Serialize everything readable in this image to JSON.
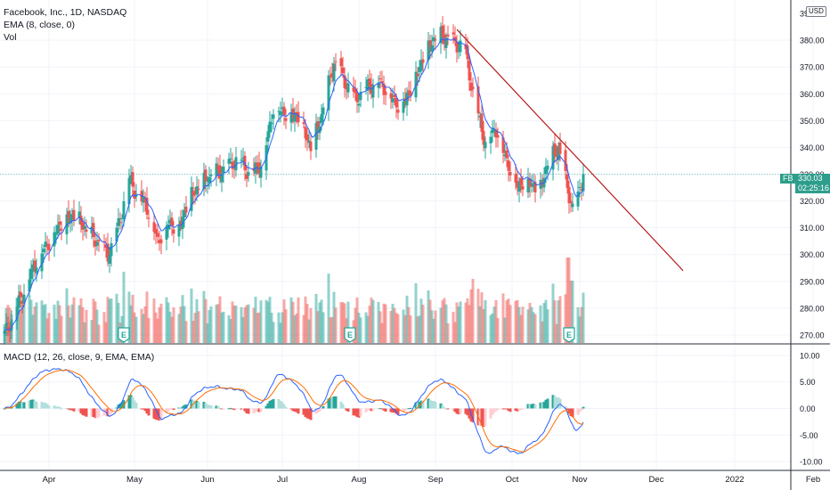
{
  "chart_data": [
    {
      "type": "candlestick",
      "title": "Facebook, Inc., 1D, NASDAQ",
      "indicator": "EMA (8, close, 0)",
      "volume_label": "Vol",
      "currency": "USD",
      "symbol_tag": "FB",
      "last_price": "330.03",
      "countdown": "02:25:16",
      "ylim": [
        267,
        395
      ],
      "y_ticks": [
        "270.00",
        "280.00",
        "290.00",
        "300.00",
        "310.00",
        "320.00",
        "330.00",
        "340.00",
        "350.00",
        "360.00",
        "370.00",
        "380.00"
      ],
      "y_top_partial": "390",
      "x_ticks": [
        {
          "day": 25,
          "label": "Apr"
        },
        {
          "day": 73,
          "label": "May"
        },
        {
          "day": 114,
          "label": "Jun"
        },
        {
          "day": 156,
          "label": "Jul"
        },
        {
          "day": 199,
          "label": "Aug"
        },
        {
          "day": 242,
          "label": "Sep"
        },
        {
          "day": 285,
          "label": "Oct"
        },
        {
          "day": 323,
          "label": "Nov"
        },
        {
          "day": 366,
          "label": "Dec"
        },
        {
          "day": 410,
          "label": "2022"
        },
        {
          "day": 454,
          "label": "Feb"
        }
      ],
      "earnings_markers": [
        {
          "day": 67,
          "label": "E"
        },
        {
          "day": 194,
          "label": "E"
        },
        {
          "day": 317,
          "label": "E"
        }
      ],
      "trendline": {
        "start": {
          "day": 254,
          "price": 384
        },
        "end": {
          "day": 381,
          "price": 294
        }
      },
      "key_closes": [
        {
          "day": 0,
          "close": 270
        },
        {
          "day": 10,
          "close": 285
        },
        {
          "day": 18,
          "close": 298
        },
        {
          "day": 25,
          "close": 305
        },
        {
          "day": 32,
          "close": 312
        },
        {
          "day": 40,
          "close": 315
        },
        {
          "day": 47,
          "close": 308
        },
        {
          "day": 52,
          "close": 305
        },
        {
          "day": 58,
          "close": 300
        },
        {
          "day": 63,
          "close": 308
        },
        {
          "day": 70,
          "close": 328
        },
        {
          "day": 75,
          "close": 322
        },
        {
          "day": 80,
          "close": 318
        },
        {
          "day": 86,
          "close": 305
        },
        {
          "day": 92,
          "close": 312
        },
        {
          "day": 98,
          "close": 310
        },
        {
          "day": 104,
          "close": 322
        },
        {
          "day": 110,
          "close": 326
        },
        {
          "day": 117,
          "close": 330
        },
        {
          "day": 124,
          "close": 332
        },
        {
          "day": 131,
          "close": 336
        },
        {
          "day": 138,
          "close": 330
        },
        {
          "day": 145,
          "close": 335
        },
        {
          "day": 151,
          "close": 355
        },
        {
          "day": 158,
          "close": 353
        },
        {
          "day": 165,
          "close": 352
        },
        {
          "day": 172,
          "close": 340
        },
        {
          "day": 178,
          "close": 352
        },
        {
          "day": 185,
          "close": 372
        },
        {
          "day": 191,
          "close": 365
        },
        {
          "day": 197,
          "close": 358
        },
        {
          "day": 204,
          "close": 363
        },
        {
          "day": 210,
          "close": 365
        },
        {
          "day": 216,
          "close": 360
        },
        {
          "day": 222,
          "close": 355
        },
        {
          "day": 228,
          "close": 362
        },
        {
          "day": 234,
          "close": 372
        },
        {
          "day": 240,
          "close": 380
        },
        {
          "day": 246,
          "close": 382
        },
        {
          "day": 252,
          "close": 379
        },
        {
          "day": 258,
          "close": 378
        },
        {
          "day": 264,
          "close": 357
        },
        {
          "day": 270,
          "close": 342
        },
        {
          "day": 276,
          "close": 347
        },
        {
          "day": 282,
          "close": 335
        },
        {
          "day": 288,
          "close": 326
        },
        {
          "day": 294,
          "close": 328
        },
        {
          "day": 300,
          "close": 324
        },
        {
          "day": 306,
          "close": 336
        },
        {
          "day": 311,
          "close": 340
        },
        {
          "day": 316,
          "close": 325
        },
        {
          "day": 320,
          "close": 315
        },
        {
          "day": 325,
          "close": 330
        }
      ],
      "macd": {
        "label": "MACD (12, 26, close, 9, EMA, EMA)",
        "ylim": [
          -11.5,
          12
        ],
        "y_ticks": [
          "10.00",
          "5.00",
          "0.00",
          "-5.00",
          "-10.00"
        ],
        "y_tick_values": [
          10,
          5,
          0,
          -5,
          -10
        ]
      }
    }
  ]
}
